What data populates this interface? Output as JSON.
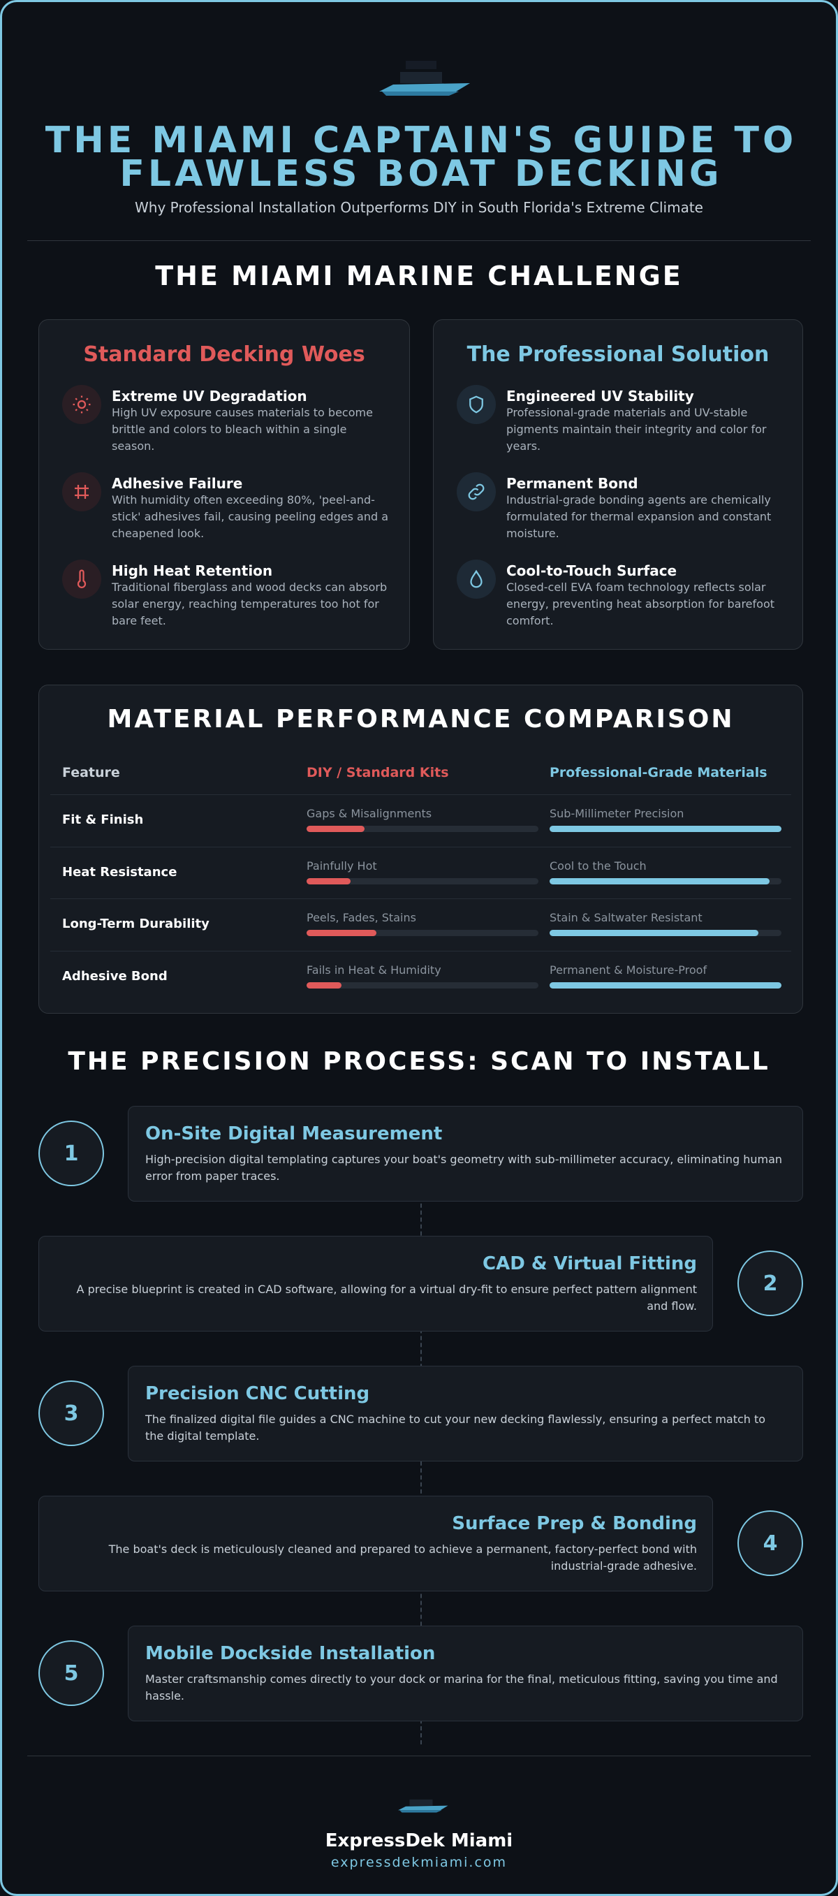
{
  "header": {
    "title": "THE MIAMI CAPTAIN'S GUIDE TO FLAWLESS BOAT DECKING",
    "subtitle": "Why Professional Installation Outperforms DIY in South Florida's Extreme Climate"
  },
  "challenge": {
    "heading": "THE MIAMI MARINE CHALLENGE",
    "cards": [
      {
        "title": "Standard Decking Woes",
        "items": [
          {
            "title": "Extreme UV Degradation",
            "text": "High UV exposure causes materials to become brittle and colors to bleach within a single season."
          },
          {
            "title": "Adhesive Failure",
            "text": "With humidity often exceeding 80%, 'peel-and-stick' adhesives fail, causing peeling edges and a cheapened look."
          },
          {
            "title": "High Heat Retention",
            "text": "Traditional fiberglass and wood decks can absorb solar energy, reaching temperatures too hot for bare feet."
          }
        ]
      },
      {
        "title": "The Professional Solution",
        "items": [
          {
            "title": "Engineered UV Stability",
            "text": "Professional-grade materials and UV-stable pigments maintain their integrity and color for years."
          },
          {
            "title": "Permanent Bond",
            "text": "Industrial-grade bonding agents are chemically formulated for thermal expansion and constant moisture."
          },
          {
            "title": "Cool-to-Touch Surface",
            "text": "Closed-cell EVA foam technology reflects solar energy, preventing heat absorption for barefoot comfort."
          }
        ]
      }
    ]
  },
  "comparison": {
    "heading": "MATERIAL PERFORMANCE COMPARISON",
    "columns": [
      "Feature",
      "DIY / Standard Kits",
      "Professional-Grade Materials"
    ],
    "rows": [
      {
        "feature": "Fit & Finish",
        "diy": {
          "label": "Gaps & Misalignments",
          "score": 25
        },
        "pro": {
          "label": "Sub-Millimeter Precision",
          "score": 100
        }
      },
      {
        "feature": "Heat Resistance",
        "diy": {
          "label": "Painfully Hot",
          "score": 19
        },
        "pro": {
          "label": "Cool to the Touch",
          "score": 95
        }
      },
      {
        "feature": "Long-Term Durability",
        "diy": {
          "label": "Peels, Fades, Stains",
          "score": 30
        },
        "pro": {
          "label": "Stain & Saltwater Resistant",
          "score": 90
        }
      },
      {
        "feature": "Adhesive Bond",
        "diy": {
          "label": "Fails in Heat & Humidity",
          "score": 15
        },
        "pro": {
          "label": "Permanent & Moisture-Proof",
          "score": 100
        }
      }
    ]
  },
  "process": {
    "heading": "THE PRECISION PROCESS: SCAN TO INSTALL",
    "steps": [
      {
        "number": 1,
        "title": "On-Site Digital Measurement",
        "text": "High-precision digital templating captures your boat's geometry with sub-millimeter accuracy, eliminating human error from paper traces."
      },
      {
        "number": 2,
        "title": "CAD & Virtual Fitting",
        "text": "A precise blueprint is created in CAD software, allowing for a virtual dry-fit to ensure perfect pattern alignment and flow."
      },
      {
        "number": 3,
        "title": "Precision CNC Cutting",
        "text": "The finalized digital file guides a CNC machine to cut your new decking flawlessly, ensuring a perfect match to the digital template."
      },
      {
        "number": 4,
        "title": "Surface Prep & Bonding",
        "text": "The boat's deck is meticulously cleaned and prepared to achieve a permanent, factory-perfect bond with industrial-grade adhesive."
      },
      {
        "number": 5,
        "title": "Mobile Dockside Installation",
        "text": "Master craftsmanship comes directly to your dock or marina for the final, meticulous fitting, saving you time and hassle."
      }
    ]
  },
  "footer": {
    "name": "ExpressDek Miami",
    "url": "expressdekmiami.com"
  }
}
